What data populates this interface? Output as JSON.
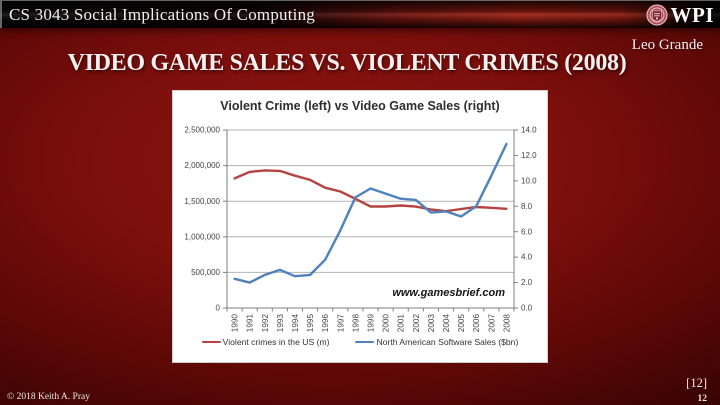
{
  "header": {
    "course_title": "CS 3043 Social Implications Of Computing",
    "logo_text": "WPI",
    "logo_icon": "wpi-seal"
  },
  "slide": {
    "author": "Leo Grande",
    "title": "VIDEO GAME SALES VS. VIOLENT CRIMES (2008)"
  },
  "footer": {
    "copyright": "© 2018 Keith A. Pray",
    "citation": "[12]",
    "page_number": "12"
  },
  "chart_data": {
    "type": "line",
    "title": "Violent Crime (left) vs Video Game Sales (right)",
    "watermark": "www.gamesbrief.com",
    "grid": true,
    "legend_position": "bottom",
    "categories": [
      "1990",
      "1991",
      "1992",
      "1993",
      "1994",
      "1995",
      "1996",
      "1997",
      "1998",
      "1999",
      "2000",
      "2001",
      "2002",
      "2003",
      "2004",
      "2005",
      "2006",
      "2007",
      "2008"
    ],
    "left_axis": {
      "min": 0,
      "max": 2500000,
      "tick_interval": 500000,
      "labels": [
        "0",
        "500,000",
        "1,000,000",
        "1,500,000",
        "2,000,000",
        "2,500,000"
      ]
    },
    "right_axis": {
      "min": 0,
      "max": 14,
      "tick_interval": 2,
      "labels": [
        "0.0",
        "2.0",
        "4.0",
        "6.0",
        "8.0",
        "10.0",
        "12.0",
        "14.0"
      ]
    },
    "series": [
      {
        "name": "Violent crimes in the US (m)",
        "axis": "left",
        "color": "#b6433f",
        "values": [
          1820000,
          1912000,
          1932000,
          1926000,
          1858000,
          1799000,
          1689000,
          1636000,
          1534000,
          1426000,
          1425000,
          1439000,
          1424000,
          1384000,
          1360000,
          1391000,
          1418000,
          1408000,
          1393000
        ]
      },
      {
        "name": "North American Software Sales ($bn)",
        "axis": "right",
        "color": "#4f81bd",
        "values": [
          2.3,
          2.0,
          2.6,
          3.0,
          2.5,
          2.6,
          3.8,
          6.1,
          8.7,
          9.4,
          9.0,
          8.6,
          8.5,
          7.5,
          7.6,
          7.2,
          8.0,
          10.4,
          12.9
        ]
      }
    ],
    "colors": {
      "grid": "#b3b3b3",
      "axis": "#7f7f7f",
      "text": "#444444"
    }
  }
}
